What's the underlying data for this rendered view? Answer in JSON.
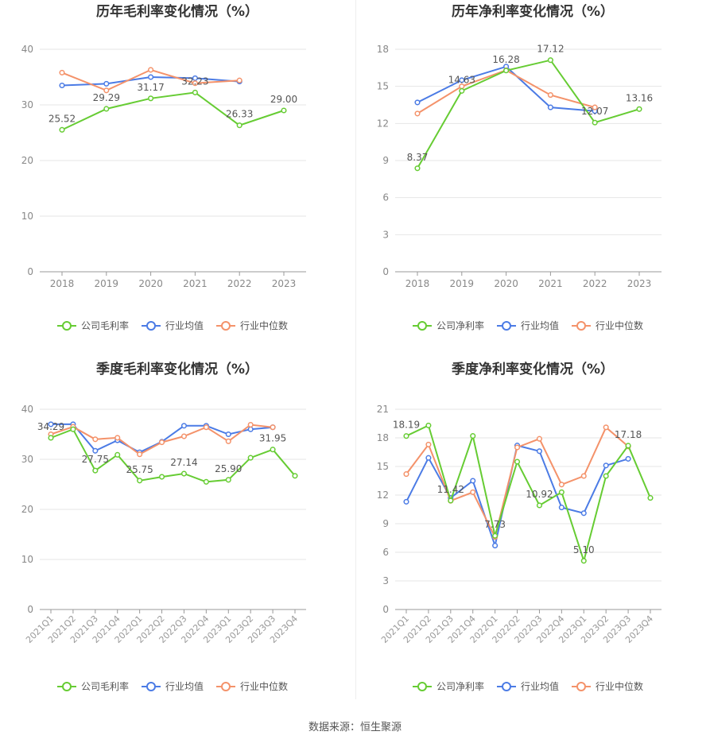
{
  "charts": [
    {
      "title": "历年毛利率变化情况（%）",
      "type": "line",
      "categories": [
        "2018",
        "2019",
        "2020",
        "2021",
        "2022",
        "2023"
      ],
      "ylim": [
        0,
        40
      ],
      "yticks": [
        0,
        10,
        20,
        30,
        40
      ],
      "series": [
        {
          "name": "公司毛利率",
          "color": "#66cc33",
          "values": [
            25.52,
            29.29,
            31.17,
            32.23,
            26.33,
            29.0
          ],
          "labels": [
            "25.52",
            "29.29",
            "31.17",
            "32.23",
            "26.33",
            "29.00"
          ]
        },
        {
          "name": "行业均值",
          "color": "#4b7be5",
          "values": [
            33.5,
            33.8,
            35.0,
            34.8,
            34.2,
            null
          ]
        },
        {
          "name": "行业中位数",
          "color": "#f4926a",
          "values": [
            35.8,
            32.6,
            36.3,
            33.9,
            34.4,
            null
          ]
        }
      ]
    },
    {
      "title": "历年净利率变化情况（%）",
      "type": "line",
      "categories": [
        "2018",
        "2019",
        "2020",
        "2021",
        "2022",
        "2023"
      ],
      "ylim": [
        0,
        18
      ],
      "yticks": [
        0,
        3,
        6,
        9,
        12,
        15,
        18
      ],
      "series": [
        {
          "name": "公司净利率",
          "color": "#66cc33",
          "values": [
            8.37,
            14.63,
            16.28,
            17.12,
            12.07,
            13.16
          ],
          "labels": [
            "8.37",
            "14.63",
            "16.28",
            "17.12",
            "12.07",
            "13.16"
          ]
        },
        {
          "name": "行业均值",
          "color": "#4b7be5",
          "values": [
            13.7,
            15.5,
            16.6,
            13.3,
            13.0,
            null
          ]
        },
        {
          "name": "行业中位数",
          "color": "#f4926a",
          "values": [
            12.8,
            15.0,
            16.3,
            14.3,
            13.3,
            null
          ]
        }
      ]
    },
    {
      "title": "季度毛利率变化情况（%）",
      "type": "line",
      "categories": [
        "2021Q1",
        "2021Q2",
        "2021Q3",
        "2021Q4",
        "2022Q1",
        "2022Q2",
        "2022Q3",
        "2022Q4",
        "2023Q1",
        "2023Q2",
        "2023Q3",
        "2023Q4"
      ],
      "ylim": [
        0,
        40
      ],
      "yticks": [
        0,
        10,
        20,
        30,
        40
      ],
      "series": [
        {
          "name": "公司毛利率",
          "color": "#66cc33",
          "values": [
            34.29,
            36.0,
            27.75,
            30.9,
            25.75,
            26.5,
            27.14,
            25.5,
            25.9,
            30.3,
            31.95,
            26.7
          ],
          "labels": [
            "34.29",
            "",
            "27.75",
            "",
            "25.75",
            "",
            "27.14",
            "",
            "25.90",
            "",
            "31.95",
            ""
          ]
        },
        {
          "name": "行业均值",
          "color": "#4b7be5",
          "values": [
            37.0,
            37.0,
            31.7,
            33.8,
            31.4,
            33.5,
            36.7,
            36.7,
            35.0,
            36.0,
            36.4,
            null
          ]
        },
        {
          "name": "行业中位数",
          "color": "#f4926a",
          "values": [
            35.0,
            36.5,
            34.0,
            34.3,
            31.0,
            33.4,
            34.6,
            36.4,
            33.6,
            36.9,
            36.4,
            null
          ]
        }
      ]
    },
    {
      "title": "季度净利率变化情况（%）",
      "type": "line",
      "categories": [
        "2021Q1",
        "2021Q2",
        "2021Q3",
        "2021Q4",
        "2022Q1",
        "2022Q2",
        "2022Q3",
        "2022Q4",
        "2023Q1",
        "2023Q2",
        "2023Q3",
        "2023Q4"
      ],
      "ylim": [
        0,
        21
      ],
      "yticks": [
        0,
        3,
        6,
        9,
        12,
        15,
        18,
        21
      ],
      "series": [
        {
          "name": "公司净利率",
          "color": "#66cc33",
          "values": [
            18.19,
            19.3,
            11.42,
            18.2,
            7.73,
            15.5,
            10.92,
            12.3,
            5.1,
            14.0,
            17.18,
            11.7
          ],
          "labels": [
            "18.19",
            "",
            "11.42",
            "",
            "7.73",
            "",
            "10.92",
            "",
            "5.10",
            "",
            "17.18",
            ""
          ]
        },
        {
          "name": "行业均值",
          "color": "#4b7be5",
          "values": [
            11.3,
            15.9,
            11.7,
            13.5,
            6.7,
            17.2,
            16.6,
            10.7,
            10.1,
            15.1,
            15.8,
            null
          ]
        },
        {
          "name": "行业中位数",
          "color": "#f4926a",
          "values": [
            14.2,
            17.3,
            11.4,
            12.3,
            7.6,
            17.0,
            17.9,
            13.1,
            14.0,
            19.1,
            17.1,
            null
          ]
        }
      ]
    }
  ],
  "footer": "数据来源：恒生聚源",
  "chart_data": [
    {
      "type": "line",
      "title": "历年毛利率变化情况（%）",
      "categories": [
        "2018",
        "2019",
        "2020",
        "2021",
        "2022",
        "2023"
      ],
      "ylim": [
        0,
        40
      ],
      "series": [
        {
          "name": "公司毛利率",
          "values": [
            25.52,
            29.29,
            31.17,
            32.23,
            26.33,
            29.0
          ]
        },
        {
          "name": "行业均值",
          "values": [
            33.5,
            33.8,
            35.0,
            34.8,
            34.2,
            null
          ]
        },
        {
          "name": "行业中位数",
          "values": [
            35.8,
            32.6,
            36.3,
            33.9,
            34.4,
            null
          ]
        }
      ]
    },
    {
      "type": "line",
      "title": "历年净利率变化情况（%）",
      "categories": [
        "2018",
        "2019",
        "2020",
        "2021",
        "2022",
        "2023"
      ],
      "ylim": [
        0,
        18
      ],
      "series": [
        {
          "name": "公司净利率",
          "values": [
            8.37,
            14.63,
            16.28,
            17.12,
            12.07,
            13.16
          ]
        },
        {
          "name": "行业均值",
          "values": [
            13.7,
            15.5,
            16.6,
            13.3,
            13.0,
            null
          ]
        },
        {
          "name": "行业中位数",
          "values": [
            12.8,
            15.0,
            16.3,
            14.3,
            13.3,
            null
          ]
        }
      ]
    },
    {
      "type": "line",
      "title": "季度毛利率变化情况（%）",
      "categories": [
        "2021Q1",
        "2021Q2",
        "2021Q3",
        "2021Q4",
        "2022Q1",
        "2022Q2",
        "2022Q3",
        "2022Q4",
        "2023Q1",
        "2023Q2",
        "2023Q3",
        "2023Q4"
      ],
      "ylim": [
        0,
        40
      ],
      "series": [
        {
          "name": "公司毛利率",
          "values": [
            34.29,
            36.0,
            27.75,
            30.9,
            25.75,
            26.5,
            27.14,
            25.5,
            25.9,
            30.3,
            31.95,
            26.7
          ]
        },
        {
          "name": "行业均值",
          "values": [
            37.0,
            37.0,
            31.7,
            33.8,
            31.4,
            33.5,
            36.7,
            36.7,
            35.0,
            36.0,
            36.4,
            null
          ]
        },
        {
          "name": "行业中位数",
          "values": [
            35.0,
            36.5,
            34.0,
            34.3,
            31.0,
            33.4,
            34.6,
            36.4,
            33.6,
            36.9,
            36.4,
            null
          ]
        }
      ]
    },
    {
      "type": "line",
      "title": "季度净利率变化情况（%）",
      "categories": [
        "2021Q1",
        "2021Q2",
        "2021Q3",
        "2021Q4",
        "2022Q1",
        "2022Q2",
        "2022Q3",
        "2022Q4",
        "2023Q1",
        "2023Q2",
        "2023Q3",
        "2023Q4"
      ],
      "ylim": [
        0,
        21
      ],
      "series": [
        {
          "name": "公司净利率",
          "values": [
            18.19,
            19.3,
            11.42,
            18.2,
            7.73,
            15.5,
            10.92,
            12.3,
            5.1,
            14.0,
            17.18,
            11.7
          ]
        },
        {
          "name": "行业均值",
          "values": [
            11.3,
            15.9,
            11.7,
            13.5,
            6.7,
            17.2,
            16.6,
            10.7,
            10.1,
            15.1,
            15.8,
            null
          ]
        },
        {
          "name": "行业中位数",
          "values": [
            14.2,
            17.3,
            11.4,
            12.3,
            7.6,
            17.0,
            17.9,
            13.1,
            14.0,
            19.1,
            17.1,
            null
          ]
        }
      ]
    }
  ]
}
